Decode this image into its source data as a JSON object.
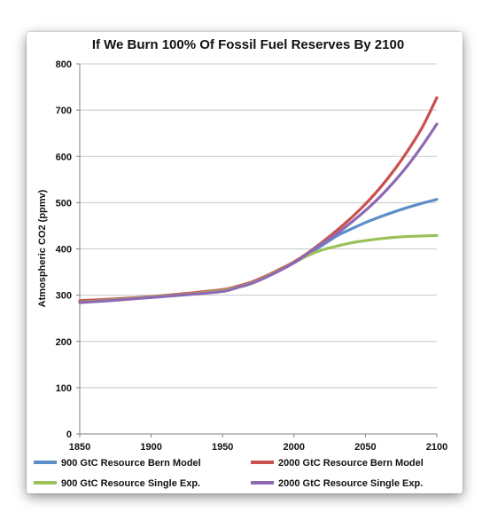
{
  "chart_data": {
    "type": "line",
    "title": "If We Burn 100% Of Fossil Fuel Reserves By 2100",
    "xlabel": "",
    "ylabel": "Atmospheric CO2 (ppmv)",
    "xlim": [
      1850,
      2100
    ],
    "ylim": [
      0,
      800
    ],
    "xticks": [
      1850,
      1900,
      1950,
      2000,
      2050,
      2100
    ],
    "yticks": [
      0,
      100,
      200,
      300,
      400,
      500,
      600,
      700,
      800
    ],
    "grid": "horizontal",
    "legend_position": "bottom",
    "series": [
      {
        "name": "900 GtC Resource Bern Model",
        "color": "#5b8ec8",
        "x": [
          1850,
          1875,
          1900,
          1925,
          1950,
          1960,
          1970,
          1980,
          1990,
          2000,
          2010,
          2020,
          2030,
          2040,
          2050,
          2060,
          2070,
          2080,
          2090,
          2100
        ],
        "y": [
          285,
          290,
          296,
          302,
          310,
          317,
          326,
          339,
          354,
          370,
          389,
          408,
          428,
          443,
          457,
          469,
          480,
          490,
          499,
          507
        ]
      },
      {
        "name": "2000 GtC Resource Bern Model",
        "color": "#c9504f",
        "x": [
          1850,
          1875,
          1900,
          1925,
          1950,
          1960,
          1970,
          1980,
          1990,
          2000,
          2010,
          2020,
          2030,
          2040,
          2050,
          2060,
          2070,
          2080,
          2090,
          2100
        ],
        "y": [
          288,
          292,
          297,
          304,
          312,
          319,
          328,
          341,
          356,
          372,
          392,
          415,
          440,
          467,
          497,
          531,
          570,
          614,
          664,
          727
        ]
      },
      {
        "name": "900 GtC Resource Single Exp.",
        "color": "#9bc15a",
        "x": [
          1850,
          1875,
          1900,
          1925,
          1950,
          1960,
          1970,
          1980,
          1990,
          2000,
          2010,
          2020,
          2030,
          2040,
          2050,
          2060,
          2070,
          2080,
          2090,
          2100
        ],
        "y": [
          285,
          290,
          296,
          302,
          310,
          317,
          326,
          339,
          354,
          370,
          386,
          398,
          406,
          413,
          418,
          422,
          425,
          427,
          428,
          429
        ]
      },
      {
        "name": "2000 GtC Resource Single Exp.",
        "color": "#8e69b3",
        "x": [
          1850,
          1875,
          1900,
          1925,
          1950,
          1960,
          1970,
          1980,
          1990,
          2000,
          2010,
          2020,
          2030,
          2040,
          2050,
          2060,
          2070,
          2080,
          2090,
          2100
        ],
        "y": [
          284,
          289,
          295,
          301,
          308,
          316,
          325,
          338,
          353,
          370,
          391,
          412,
          433,
          457,
          483,
          512,
          545,
          582,
          624,
          670
        ]
      }
    ]
  }
}
